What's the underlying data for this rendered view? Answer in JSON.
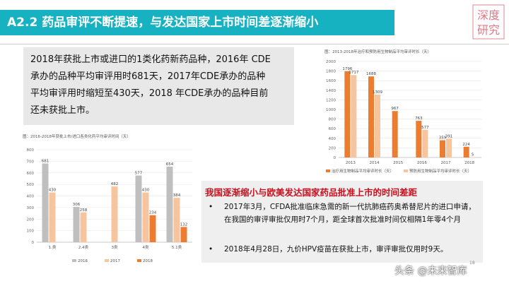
{
  "header": {
    "title": "A2.2  药品审评不断提速，与发达国家上市时间差逐渐缩小",
    "logo_text": [
      "深度",
      "研究"
    ]
  },
  "intro": {
    "lines": [
      "2018年获批上市或进口的1类化药新药品种，2016年 CDE",
      "承办的品种平均审评用时681天，2017年CDE承办的品种",
      "平均审评用时缩短至430天，2018 年CDE承办的品种目前",
      "还未获批上市。"
    ]
  },
  "colors": {
    "title_bar": "#17b2c2",
    "c2016": "#bfbfbf",
    "c2017": "#f6c59d",
    "c2018": "#ec7c30",
    "red": "#c8101e"
  },
  "chart_data": [
    {
      "type": "bar",
      "title": "图：2016-2018年获批上市/进口各类化药平均审评时间（天）",
      "categories": [
        "1.类",
        "2.4类",
        "3类",
        "4类",
        "5.1类"
      ],
      "series": [
        {
          "name": "2016",
          "values": [
            681,
            306,
            null,
            577,
            654
          ]
        },
        {
          "name": "2017",
          "values": [
            430,
            258,
            482,
            430,
            384
          ]
        },
        {
          "name": "2018",
          "values": [
            null,
            null,
            null,
            234,
            132
          ]
        }
      ],
      "ylim": [
        0,
        800
      ],
      "yticks": [
        0,
        100,
        200,
        300,
        400,
        500,
        600,
        700,
        800
      ],
      "legend": "bottom"
    },
    {
      "type": "bar",
      "title": "图：2013-2018年治疗和预防用生物制品平均审评时长（天）",
      "categories": [
        "2013",
        "2014",
        "2015",
        "2016",
        "2017",
        "2018"
      ],
      "series": [
        {
          "name": "治疗用生物制品平均审评时长（天）",
          "values": [
            1796,
            1688,
            967,
            763,
            359,
            224
          ]
        },
        {
          "name": "预防用生物制品平均审评时长（天）",
          "values": [
            1717,
            1309,
            null,
            577,
            391,
            5
          ]
        }
      ],
      "ylim": [
        0,
        2000
      ],
      "yticks": [
        0,
        200,
        400,
        600,
        800,
        1000,
        1200,
        1400,
        1600,
        1800,
        2000
      ],
      "legend": "bottom"
    }
  ],
  "policy": {
    "title": "我国逐渐缩小与欧美发达国家药品批准上市的时间差距",
    "bullet": "•",
    "items": [
      "2017年3月，CFDA批准临床急需的新一代抗肺癌药奥希替尼片的进口申请，在我国的审评审批仅用时7个月，距全球首次批准时间仅相隔1年零4个月",
      "2018年4月28日，九价HPV疫苗在获批上市，审评审批仅用时9天。"
    ]
  },
  "page_number": "18",
  "watermark": "头条 @未来智库"
}
